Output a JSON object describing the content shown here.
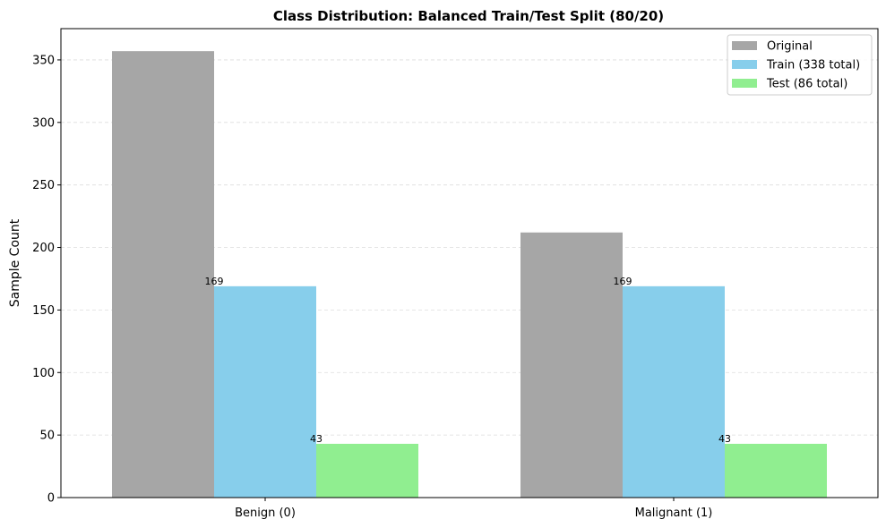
{
  "chart_data": {
    "type": "bar",
    "title": "Class Distribution: Balanced Train/Test Split (80/20)",
    "xlabel": "",
    "ylabel": "Sample Count",
    "categories": [
      "Benign (0)",
      "Malignant (1)"
    ],
    "series": [
      {
        "name": "Original",
        "values": [
          357,
          212
        ],
        "color": "#a6a6a6",
        "labels": [
          "",
          ""
        ]
      },
      {
        "name": "Train (338 total)",
        "values": [
          169,
          169
        ],
        "color": "#87ceeb",
        "labels": [
          "169",
          "169"
        ]
      },
      {
        "name": "Test (86 total)",
        "values": [
          43,
          43
        ],
        "color": "#90ee90",
        "labels": [
          "43",
          "43"
        ]
      }
    ],
    "ylim": [
      0,
      375
    ],
    "yticks": [
      0,
      50,
      100,
      150,
      200,
      250,
      300,
      350
    ],
    "grid": {
      "y": true,
      "style": "dashed"
    },
    "legend": "top-right"
  }
}
